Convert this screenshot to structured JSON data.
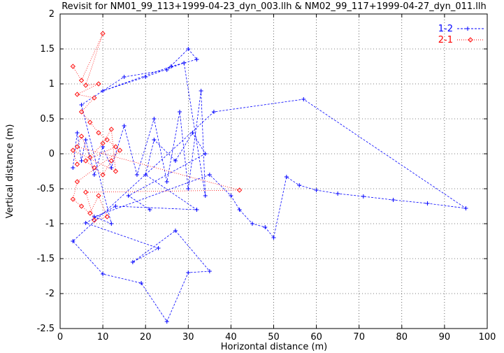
{
  "chart_data": {
    "type": "scatter",
    "title": "Revisit for NM01_99_113+1999-04-23_dyn_003.llh & NM02_99_117+1999-04-27_dyn_011.llh",
    "xlabel": "Horizontal distance (m)",
    "ylabel": "Vertical distance (m)",
    "xlim": [
      0,
      100
    ],
    "ylim": [
      -2.5,
      2
    ],
    "xticks": [
      0,
      10,
      20,
      30,
      40,
      50,
      60,
      70,
      80,
      90,
      100
    ],
    "yticks": [
      -2.5,
      -2,
      -1.5,
      -1,
      -0.5,
      0,
      0.5,
      1,
      1.5,
      2
    ],
    "grid": true,
    "legend_position": "top-right",
    "series": [
      {
        "name": "1-2",
        "color": "#0000ff",
        "marker": "plus",
        "line": "dashed",
        "points": [
          [
            3,
            -0.2
          ],
          [
            4,
            0.3
          ],
          [
            5,
            -0.1
          ],
          [
            6,
            0.2
          ],
          [
            8,
            -0.3
          ],
          [
            10,
            0.1
          ],
          [
            12,
            -0.2
          ],
          [
            15,
            0.4
          ],
          [
            18,
            -0.3
          ],
          [
            22,
            0.5
          ],
          [
            25,
            -0.4
          ],
          [
            28,
            0.6
          ],
          [
            30,
            -0.5
          ],
          [
            33,
            0.9
          ],
          [
            34,
            -0.6
          ],
          [
            29,
            1.3
          ],
          [
            20,
            1.1
          ],
          [
            10,
            0.9
          ],
          [
            26,
            1.25
          ],
          [
            32,
            1.35
          ],
          [
            30,
            1.5
          ],
          [
            25,
            1.2
          ],
          [
            15,
            1.1
          ],
          [
            5,
            0.7
          ],
          [
            12,
            -1.0
          ],
          [
            8,
            -0.9
          ],
          [
            35,
            -0.3
          ],
          [
            40,
            -0.6
          ],
          [
            42,
            -0.8
          ],
          [
            45,
            -1.0
          ],
          [
            48,
            -1.05
          ],
          [
            50,
            -1.2
          ],
          [
            53,
            -0.33
          ],
          [
            56,
            -0.45
          ],
          [
            60,
            -0.52
          ],
          [
            65,
            -0.57
          ],
          [
            71,
            -0.61
          ],
          [
            78,
            -0.66
          ],
          [
            86,
            -0.71
          ],
          [
            95,
            -0.78
          ],
          [
            57,
            0.78
          ],
          [
            36,
            0.6
          ],
          [
            3,
            -1.25
          ],
          [
            10,
            -1.72
          ],
          [
            19,
            -1.85
          ],
          [
            25,
            -2.4
          ],
          [
            30,
            -1.7
          ],
          [
            35,
            -1.68
          ],
          [
            27,
            -1.1
          ],
          [
            17,
            -1.55
          ],
          [
            23,
            -1.35
          ],
          [
            6,
            -0.99
          ],
          [
            13,
            -0.75
          ],
          [
            32,
            -0.8
          ],
          [
            20,
            -0.3
          ],
          [
            22,
            0.2
          ],
          [
            27,
            -0.1
          ],
          [
            31,
            0.3
          ],
          [
            34,
            0.0
          ],
          [
            16,
            -0.6
          ],
          [
            21,
            -0.8
          ]
        ]
      },
      {
        "name": "2-1",
        "color": "#ff0000",
        "marker": "diamond",
        "line": "dotted",
        "points": [
          [
            3,
            1.25
          ],
          [
            5,
            1.05
          ],
          [
            10,
            1.72
          ],
          [
            6,
            0.98
          ],
          [
            9,
            1.0
          ],
          [
            4,
            0.85
          ],
          [
            8,
            0.8
          ],
          [
            5,
            0.6
          ],
          [
            7,
            0.45
          ],
          [
            9,
            0.3
          ],
          [
            11,
            0.2
          ],
          [
            13,
            0.1
          ],
          [
            6,
            -0.1
          ],
          [
            8,
            -0.2
          ],
          [
            10,
            -0.3
          ],
          [
            12,
            -0.1
          ],
          [
            14,
            0.05
          ],
          [
            4,
            -0.4
          ],
          [
            3,
            -0.65
          ],
          [
            5,
            -0.75
          ],
          [
            7,
            -0.85
          ],
          [
            9,
            -0.6
          ],
          [
            11,
            -0.9
          ],
          [
            8,
            -0.95
          ],
          [
            6,
            -0.55
          ],
          [
            42,
            -0.52
          ],
          [
            4,
            0.1
          ],
          [
            5,
            0.25
          ],
          [
            7,
            -0.05
          ],
          [
            10,
            0.15
          ],
          [
            12,
            0.35
          ],
          [
            13,
            -0.25
          ],
          [
            3,
            0.05
          ],
          [
            4,
            -0.15
          ]
        ]
      }
    ]
  }
}
